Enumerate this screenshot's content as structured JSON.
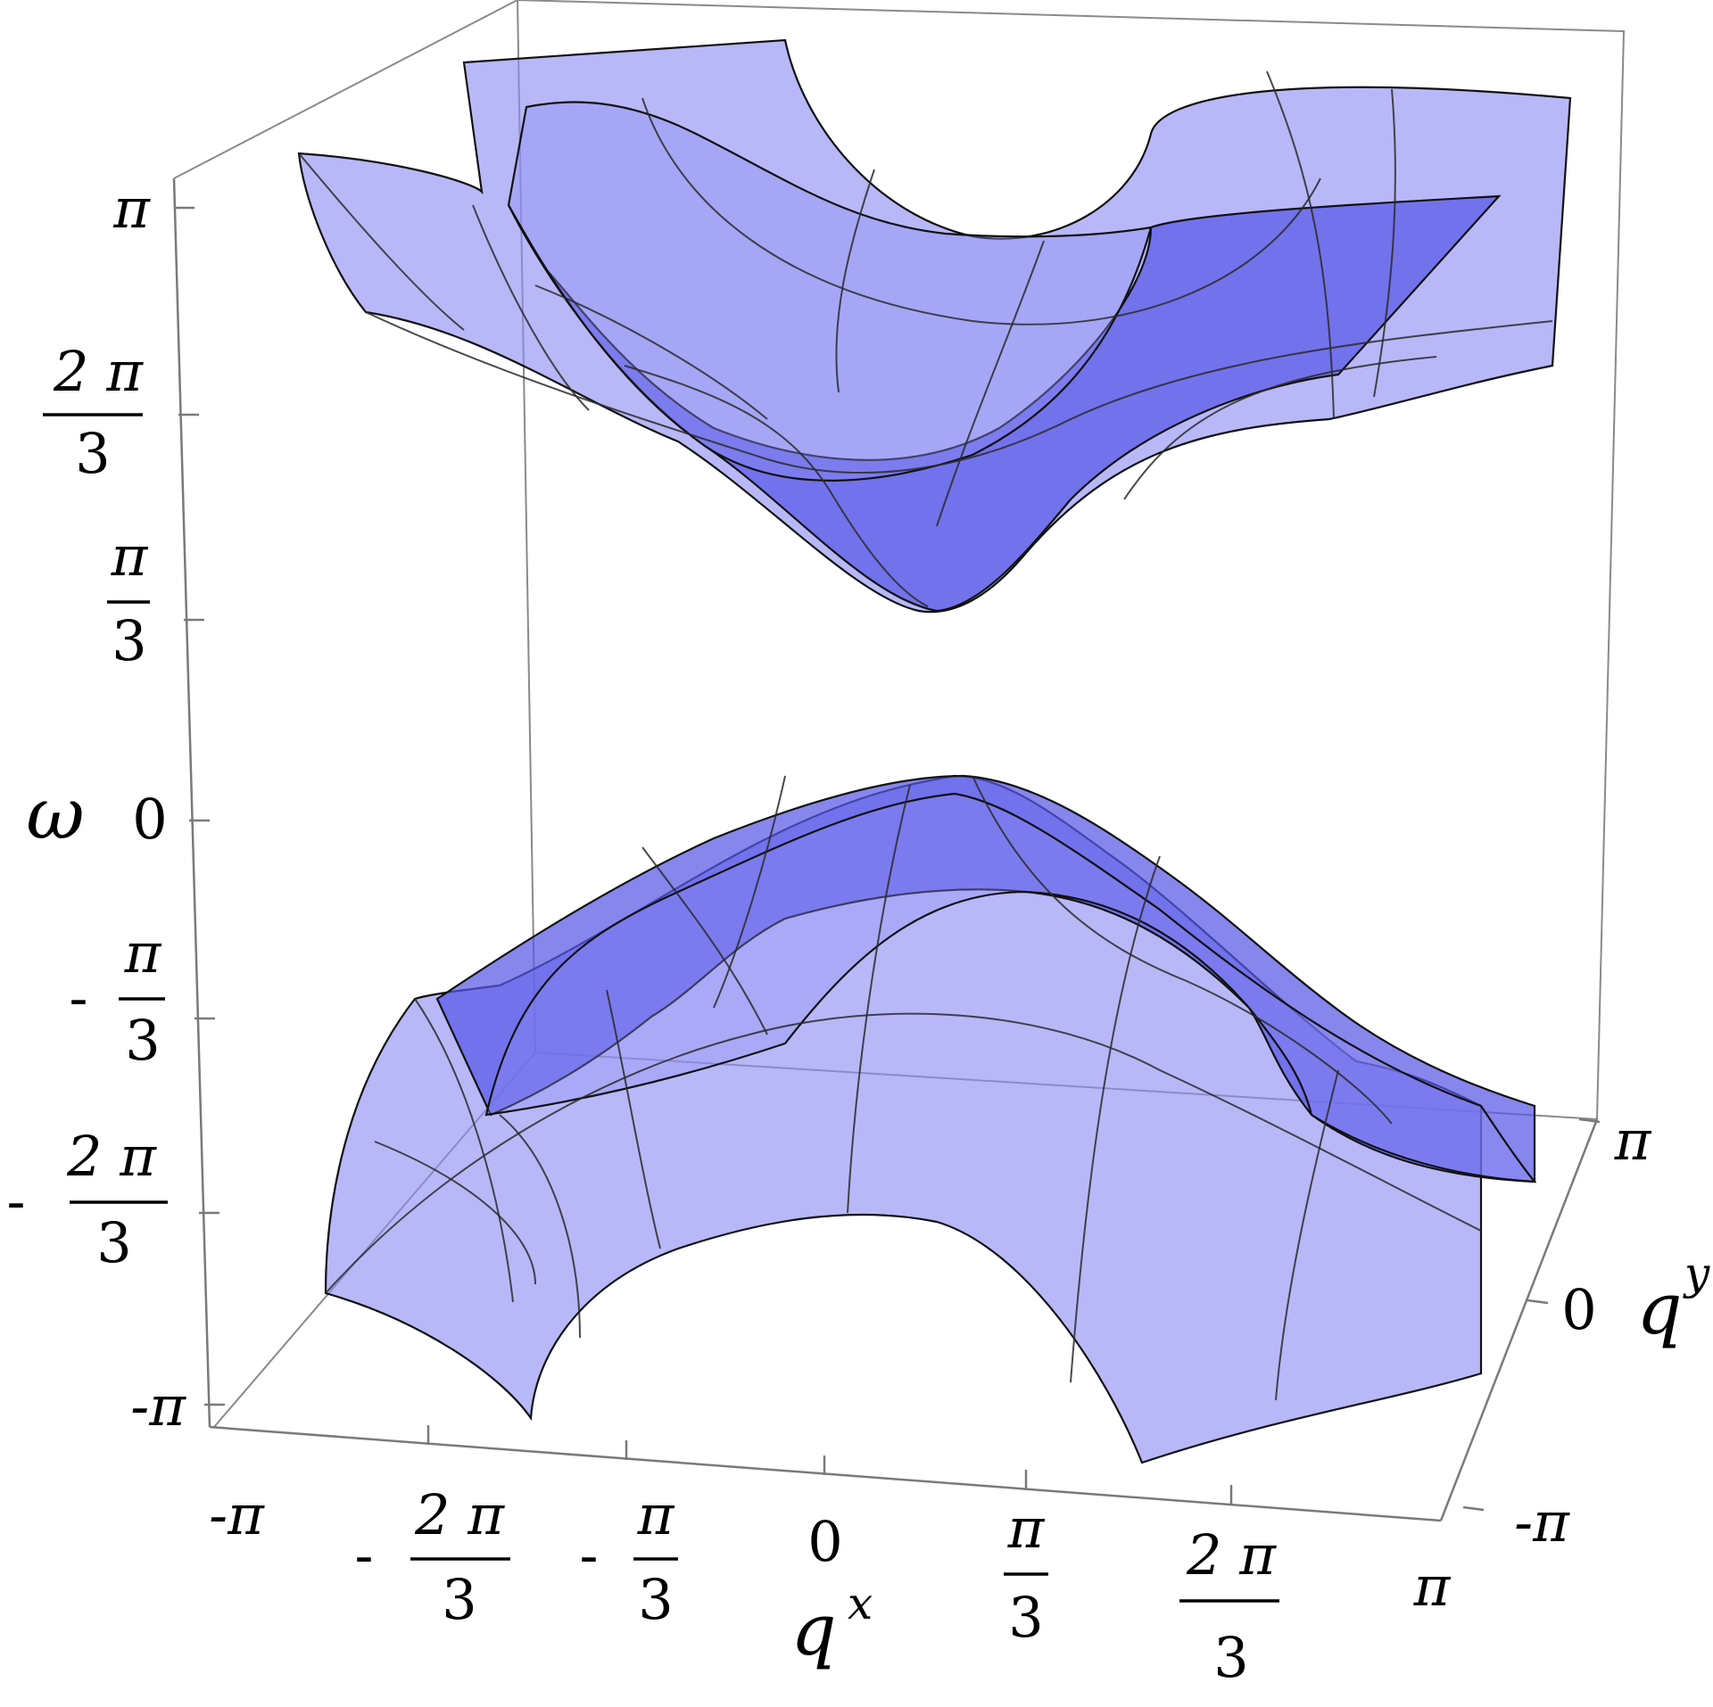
{
  "chart_data": {
    "type": "surface3d",
    "description_note": "",
    "axes": {
      "x": {
        "label": "q",
        "label_sup": "x",
        "range": [
          "-π",
          "π"
        ],
        "ticks": [
          "-π",
          "-2π/3",
          "-π/3",
          "0",
          "π/3",
          "2π/3",
          "π"
        ]
      },
      "y": {
        "label": "q",
        "label_sup": "y",
        "range": [
          "-π",
          "π"
        ],
        "ticks": [
          "-π",
          "0",
          "π"
        ]
      },
      "z": {
        "label": "ω",
        "range": [
          "-π",
          "π"
        ],
        "ticks": [
          "-π",
          "-2π/3",
          "-π/3",
          "0",
          "π/3",
          "2π/3",
          "π"
        ]
      }
    },
    "series": [
      {
        "band": "upper",
        "min_omega_approx": "π/3"
      },
      {
        "band": "lower",
        "max_omega_approx": "-π/3"
      }
    ],
    "colors": {
      "surface": "#8c8cf5",
      "surface_dark": "#5858e6",
      "mesh": "#2a2a2a",
      "box": "#8a8a8a"
    }
  },
  "labels": {
    "z_ticks": [
      {
        "num": "π",
        "den": "",
        "sign": ""
      },
      {
        "num": "2 π",
        "den": "3",
        "sign": ""
      },
      {
        "num": "π",
        "den": "3",
        "sign": ""
      },
      {
        "num": "0",
        "den": "",
        "sign": ""
      },
      {
        "num": "π",
        "den": "3",
        "sign": "-"
      },
      {
        "num": "2 π",
        "den": "3",
        "sign": "-"
      },
      {
        "num": "-π",
        "den": "",
        "sign": ""
      }
    ],
    "x_ticks": [
      {
        "num": "-π",
        "den": "",
        "sign": ""
      },
      {
        "num": "2 π",
        "den": "3",
        "sign": "-"
      },
      {
        "num": "π",
        "den": "3",
        "sign": "-"
      },
      {
        "num": "0",
        "den": "",
        "sign": ""
      },
      {
        "num": "π",
        "den": "3",
        "sign": ""
      },
      {
        "num": "2 π",
        "den": "3",
        "sign": ""
      },
      {
        "num": "π",
        "den": "",
        "sign": ""
      }
    ],
    "y_ticks": [
      "π",
      "0",
      "-π"
    ],
    "omega": "ω",
    "qx_base": "q",
    "qx_sup": "x",
    "qy_base": "q",
    "qy_sup": "y"
  }
}
